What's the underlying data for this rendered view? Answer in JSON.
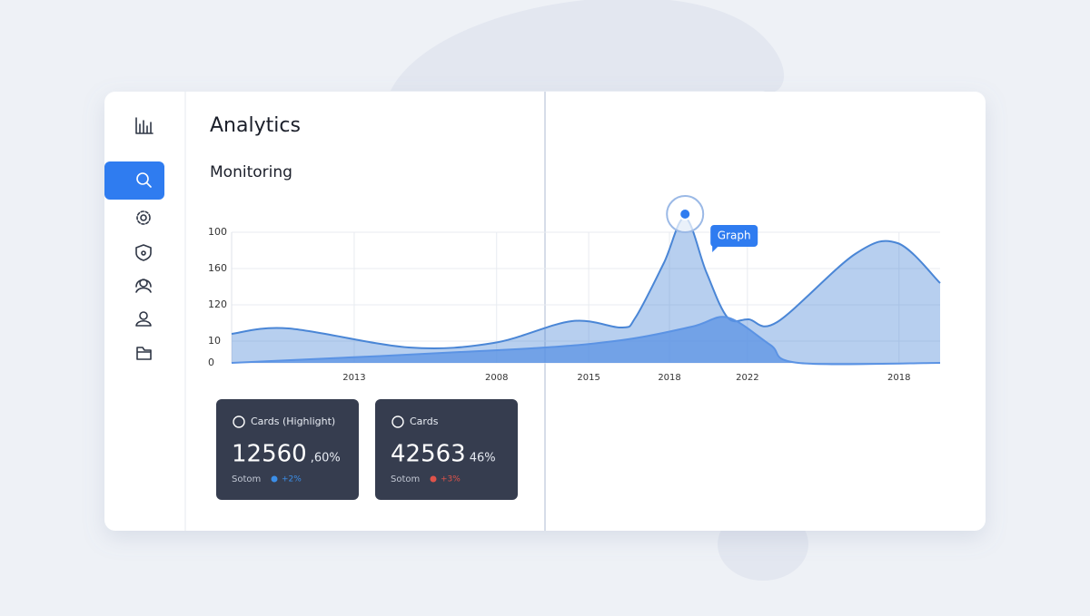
{
  "header": {
    "title": "Analytics",
    "subtitle": "Monitoring"
  },
  "chart_data": {
    "type": "area",
    "ylim": [
      0,
      180
    ],
    "yticks": [
      {
        "value": 144,
        "label": "100"
      },
      {
        "value": 104,
        "label": "160"
      },
      {
        "value": 64,
        "label": "120"
      },
      {
        "value": 24,
        "label": "10"
      },
      0
    ],
    "xlim": [
      0,
      100
    ],
    "xticks": [
      {
        "value": 17.3,
        "label": "2013"
      },
      {
        "value": 37.4,
        "label": "2008"
      },
      {
        "value": 50.4,
        "label": "2015"
      },
      {
        "value": 61.8,
        "label": "2018"
      },
      {
        "value": 72.8,
        "label": "2022"
      },
      {
        "value": 94.2,
        "label": "2018"
      }
    ],
    "grid": true,
    "annotation": "Graph",
    "series": [
      {
        "color": "#4a86d6",
        "x": [
          0,
          8,
          25,
          37,
          48,
          55,
          57,
          61,
          64,
          67,
          70,
          73,
          77,
          88,
          94,
          100
        ],
        "values": [
          32,
          38,
          17,
          22,
          46,
          39,
          50,
          110,
          160,
          100,
          50,
          48,
          45,
          120,
          132,
          88
        ]
      },
      {
        "color": "#5b93e4",
        "x": [
          0,
          40,
          55,
          65,
          70,
          76,
          80,
          100
        ],
        "values": [
          0,
          15,
          25,
          40,
          50,
          20,
          0,
          0
        ]
      }
    ]
  },
  "cards": [
    {
      "title": "Cards (Highlight)",
      "value": "12560",
      "change": ",60%",
      "label": "Sotom",
      "delta": "+2%"
    },
    {
      "title": "Cards",
      "value": "42563",
      "change": "46%",
      "label": "Sotom",
      "delta": "+3%"
    }
  ]
}
